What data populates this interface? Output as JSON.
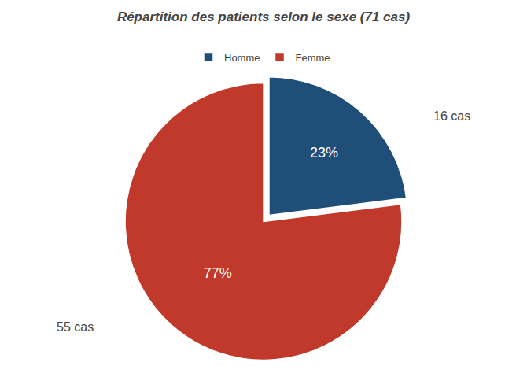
{
  "chart_data": {
    "type": "pie",
    "title": "Répartition des patients selon le sexe (71 cas)",
    "categories": [
      "Homme",
      "Femme"
    ],
    "values": [
      23,
      77
    ],
    "value_labels": [
      "23%",
      "77%"
    ],
    "colors": [
      "#1f4e79",
      "#c0392b"
    ],
    "data_labels": true,
    "legend": "top",
    "annotations": [
      "16 cas",
      "55 cas"
    ]
  }
}
